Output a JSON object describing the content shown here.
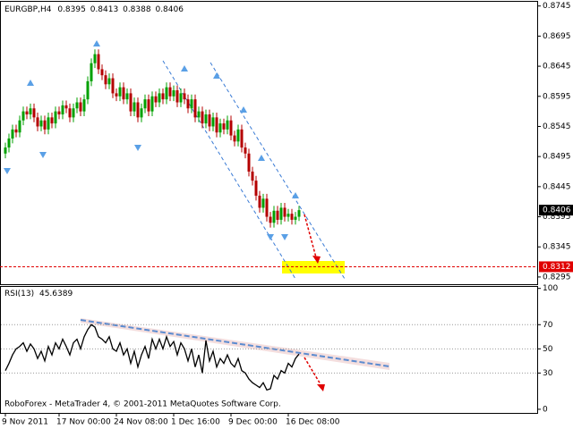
{
  "chart_data": {
    "type": "candlestick",
    "symbol": "EURGBP,H4",
    "up_color": "#00a000",
    "down_color": "#b40000",
    "ylim": [
      0.8283,
      0.8752
    ],
    "yticks": [
      0.8745,
      0.8695,
      0.8645,
      0.8595,
      0.8545,
      0.8495,
      0.8445,
      0.8395,
      0.8345,
      0.8295
    ],
    "target_level": 0.8312,
    "categories": [
      "9 Nov 2011",
      null,
      null,
      null,
      null,
      null,
      null,
      null,
      null,
      null,
      null,
      null,
      null,
      null,
      null,
      "17 Nov 00:00",
      null,
      null,
      null,
      null,
      null,
      null,
      null,
      null,
      null,
      null,
      null,
      null,
      null,
      null,
      null,
      "24 Nov 08:00",
      null,
      null,
      null,
      null,
      null,
      null,
      null,
      null,
      null,
      null,
      null,
      null,
      null,
      null,
      null,
      "1 Dec 16:00",
      null,
      null,
      null,
      null,
      null,
      null,
      null,
      null,
      null,
      null,
      null,
      null,
      null,
      null,
      null,
      "9 Dec 00:00",
      null,
      null,
      null,
      null,
      null,
      null,
      null,
      null,
      null,
      null,
      null,
      null,
      null,
      null,
      null,
      "16 Dec 08:00",
      null,
      null,
      null
    ],
    "ohlc": [
      [
        0.85,
        0.8518,
        0.8492,
        0.851
      ],
      [
        0.851,
        0.8533,
        0.8502,
        0.8525
      ],
      [
        0.8525,
        0.8548,
        0.8517,
        0.854
      ],
      [
        0.854,
        0.8548,
        0.8527,
        0.8535
      ],
      [
        0.8535,
        0.8563,
        0.8527,
        0.8555
      ],
      [
        0.8555,
        0.8578,
        0.8547,
        0.857
      ],
      [
        0.857,
        0.8578,
        0.8557,
        0.8565
      ],
      [
        0.8565,
        0.8583,
        0.8557,
        0.8575
      ],
      [
        0.8575,
        0.8583,
        0.8552,
        0.856
      ],
      [
        0.856,
        0.8568,
        0.8537,
        0.8545
      ],
      [
        0.8545,
        0.8563,
        0.8537,
        0.8555
      ],
      [
        0.8555,
        0.8563,
        0.8532,
        0.854
      ],
      [
        0.854,
        0.8568,
        0.8532,
        0.856
      ],
      [
        0.856,
        0.8568,
        0.8542,
        0.855
      ],
      [
        0.855,
        0.8578,
        0.8542,
        0.857
      ],
      [
        0.857,
        0.8578,
        0.8557,
        0.8565
      ],
      [
        0.8565,
        0.8588,
        0.8557,
        0.858
      ],
      [
        0.858,
        0.8588,
        0.8567,
        0.8575
      ],
      [
        0.8575,
        0.8583,
        0.8552,
        0.856
      ],
      [
        0.856,
        0.8583,
        0.8552,
        0.8575
      ],
      [
        0.8575,
        0.8593,
        0.8567,
        0.8585
      ],
      [
        0.8585,
        0.8593,
        0.8562,
        0.857
      ],
      [
        0.857,
        0.8598,
        0.8562,
        0.859
      ],
      [
        0.859,
        0.8628,
        0.8582,
        0.862
      ],
      [
        0.862,
        0.8658,
        0.8612,
        0.865
      ],
      [
        0.865,
        0.8673,
        0.8642,
        0.8665
      ],
      [
        0.8665,
        0.8673,
        0.8632,
        0.864
      ],
      [
        0.864,
        0.8648,
        0.8622,
        0.863
      ],
      [
        0.863,
        0.8638,
        0.8607,
        0.8615
      ],
      [
        0.8615,
        0.8633,
        0.8607,
        0.8625
      ],
      [
        0.8625,
        0.8633,
        0.8592,
        0.86
      ],
      [
        0.86,
        0.8608,
        0.8587,
        0.8595
      ],
      [
        0.8595,
        0.8618,
        0.8587,
        0.861
      ],
      [
        0.861,
        0.8618,
        0.8582,
        0.859
      ],
      [
        0.859,
        0.8608,
        0.8582,
        0.86
      ],
      [
        0.86,
        0.8608,
        0.8562,
        0.857
      ],
      [
        0.857,
        0.8593,
        0.8562,
        0.8585
      ],
      [
        0.8585,
        0.8593,
        0.8552,
        0.856
      ],
      [
        0.856,
        0.8583,
        0.8552,
        0.8575
      ],
      [
        0.8575,
        0.8598,
        0.8567,
        0.859
      ],
      [
        0.859,
        0.8598,
        0.8562,
        0.857
      ],
      [
        0.857,
        0.8603,
        0.8562,
        0.8595
      ],
      [
        0.8595,
        0.8603,
        0.8577,
        0.8585
      ],
      [
        0.8585,
        0.8608,
        0.8577,
        0.86
      ],
      [
        0.86,
        0.8608,
        0.8582,
        0.859
      ],
      [
        0.859,
        0.8618,
        0.8582,
        0.861
      ],
      [
        0.861,
        0.8618,
        0.8587,
        0.8595
      ],
      [
        0.8595,
        0.8613,
        0.8587,
        0.8605
      ],
      [
        0.8605,
        0.8613,
        0.8577,
        0.8585
      ],
      [
        0.8585,
        0.8608,
        0.8577,
        0.86
      ],
      [
        0.86,
        0.8608,
        0.8582,
        0.859
      ],
      [
        0.859,
        0.8598,
        0.8567,
        0.8575
      ],
      [
        0.8575,
        0.8598,
        0.8567,
        0.859
      ],
      [
        0.859,
        0.8598,
        0.8552,
        0.856
      ],
      [
        0.856,
        0.8578,
        0.8552,
        0.857
      ],
      [
        0.857,
        0.8578,
        0.8542,
        0.855
      ],
      [
        0.855,
        0.8573,
        0.8542,
        0.8565
      ],
      [
        0.8565,
        0.8573,
        0.8537,
        0.8545
      ],
      [
        0.8545,
        0.8568,
        0.8537,
        0.856
      ],
      [
        0.856,
        0.8568,
        0.8527,
        0.8535
      ],
      [
        0.8535,
        0.8558,
        0.8527,
        0.855
      ],
      [
        0.855,
        0.8558,
        0.8532,
        0.854
      ],
      [
        0.854,
        0.8563,
        0.8532,
        0.8555
      ],
      [
        0.8555,
        0.8563,
        0.8522,
        0.853
      ],
      [
        0.853,
        0.8538,
        0.8512,
        0.852
      ],
      [
        0.852,
        0.8548,
        0.8512,
        0.854
      ],
      [
        0.854,
        0.8548,
        0.8502,
        0.851
      ],
      [
        0.851,
        0.8518,
        0.8492,
        0.85
      ],
      [
        0.85,
        0.8508,
        0.8462,
        0.847
      ],
      [
        0.847,
        0.8478,
        0.8447,
        0.8455
      ],
      [
        0.8455,
        0.8463,
        0.8422,
        0.843
      ],
      [
        0.843,
        0.8438,
        0.8402,
        0.841
      ],
      [
        0.841,
        0.8433,
        0.8402,
        0.8425
      ],
      [
        0.8425,
        0.8433,
        0.8387,
        0.8395
      ],
      [
        0.8395,
        0.8403,
        0.8377,
        0.8385
      ],
      [
        0.8385,
        0.8413,
        0.8377,
        0.8405
      ],
      [
        0.8405,
        0.8413,
        0.8382,
        0.839
      ],
      [
        0.839,
        0.8418,
        0.8382,
        0.841
      ],
      [
        0.841,
        0.8418,
        0.8387,
        0.8395
      ],
      [
        0.8395,
        0.8408,
        0.8387,
        0.84
      ],
      [
        0.84,
        0.8408,
        0.8382,
        0.839
      ],
      [
        0.839,
        0.8403,
        0.8382,
        0.8395
      ],
      [
        0.8395,
        0.8413,
        0.8388,
        0.8406
      ]
    ],
    "indicator": {
      "type": "line",
      "name": "RSI(13)",
      "color": "#000000",
      "ylim": [
        -3,
        102
      ],
      "yticks": [
        100,
        70,
        50,
        30,
        0
      ],
      "values": [
        32,
        38,
        45,
        50,
        52,
        55,
        48,
        54,
        50,
        42,
        48,
        40,
        52,
        45,
        55,
        50,
        58,
        52,
        45,
        55,
        58,
        50,
        60,
        66,
        70,
        68,
        60,
        58,
        55,
        60,
        50,
        48,
        55,
        45,
        50,
        38,
        48,
        35,
        45,
        52,
        42,
        58,
        50,
        58,
        50,
        60,
        52,
        56,
        45,
        55,
        50,
        40,
        50,
        35,
        45,
        30,
        57,
        40,
        48,
        35,
        42,
        38,
        45,
        38,
        35,
        42,
        32,
        30,
        25,
        22,
        20,
        18,
        22,
        16,
        17,
        28,
        25,
        32,
        30,
        38,
        35,
        42,
        45.6389
      ]
    },
    "copyright": "RoboForex - MetaTrader 4, © 2001-2011 MetaQuotes Software Corp."
  }
}
